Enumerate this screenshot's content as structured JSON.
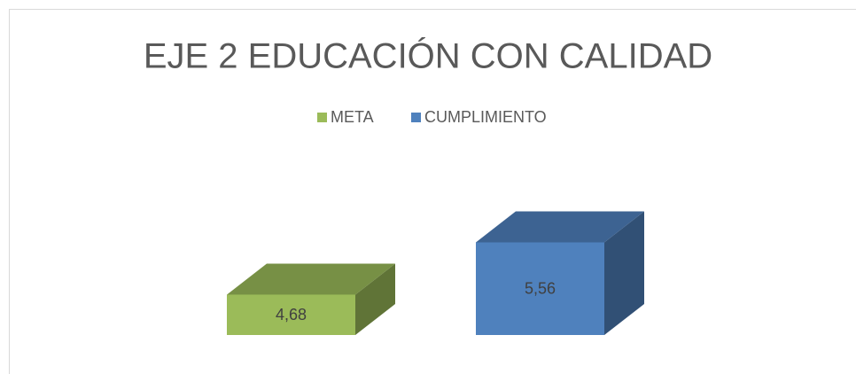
{
  "chart_data": {
    "type": "bar3d",
    "title": "EJE 2 EDUCACIÓN CON CALIDAD",
    "categories": [
      null
    ],
    "series": [
      {
        "name": "META",
        "color": "#9bbb59",
        "values": [
          4.68
        ],
        "value_labels": [
          "4,68"
        ]
      },
      {
        "name": "CUMPLIMIENTO",
        "color": "#4f81bd",
        "values": [
          5.56
        ],
        "value_labels": [
          "5,56"
        ]
      }
    ],
    "ylim": [
      4,
      6
    ],
    "legend": "top"
  }
}
